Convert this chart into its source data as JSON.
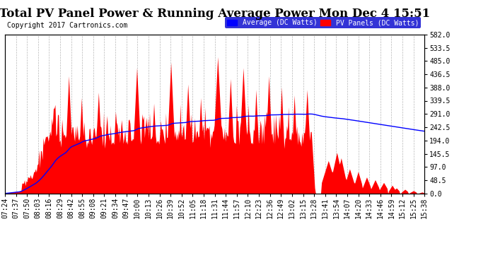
{
  "title": "Total PV Panel Power & Running Average Power Mon Dec 4 15:51",
  "copyright": "Copyright 2017 Cartronics.com",
  "ylabel_right_values": [
    0.0,
    48.5,
    97.0,
    145.5,
    194.0,
    242.5,
    291.0,
    339.5,
    388.0,
    436.5,
    485.0,
    533.5,
    582.0
  ],
  "ymax": 582.0,
  "ymin": 0.0,
  "legend_avg_label": "Average (DC Watts)",
  "legend_pv_label": "PV Panels (DC Watts)",
  "avg_line_color": "#0000ff",
  "pv_fill_color": "#ff0000",
  "background_color": "#ffffff",
  "plot_bg_color": "#ffffff",
  "grid_color": "#888888",
  "title_fontsize": 12,
  "copyright_fontsize": 7,
  "tick_fontsize": 7,
  "x_tick_labels": [
    "07:24",
    "07:37",
    "07:50",
    "08:03",
    "08:16",
    "08:29",
    "08:42",
    "08:55",
    "09:08",
    "09:21",
    "09:34",
    "09:47",
    "10:00",
    "10:13",
    "10:26",
    "10:39",
    "10:52",
    "11:05",
    "11:18",
    "11:31",
    "11:44",
    "11:57",
    "12:10",
    "12:23",
    "12:36",
    "12:49",
    "13:02",
    "13:15",
    "13:28",
    "13:41",
    "13:54",
    "14:07",
    "14:20",
    "14:33",
    "14:46",
    "14:59",
    "15:12",
    "15:25",
    "15:38"
  ]
}
